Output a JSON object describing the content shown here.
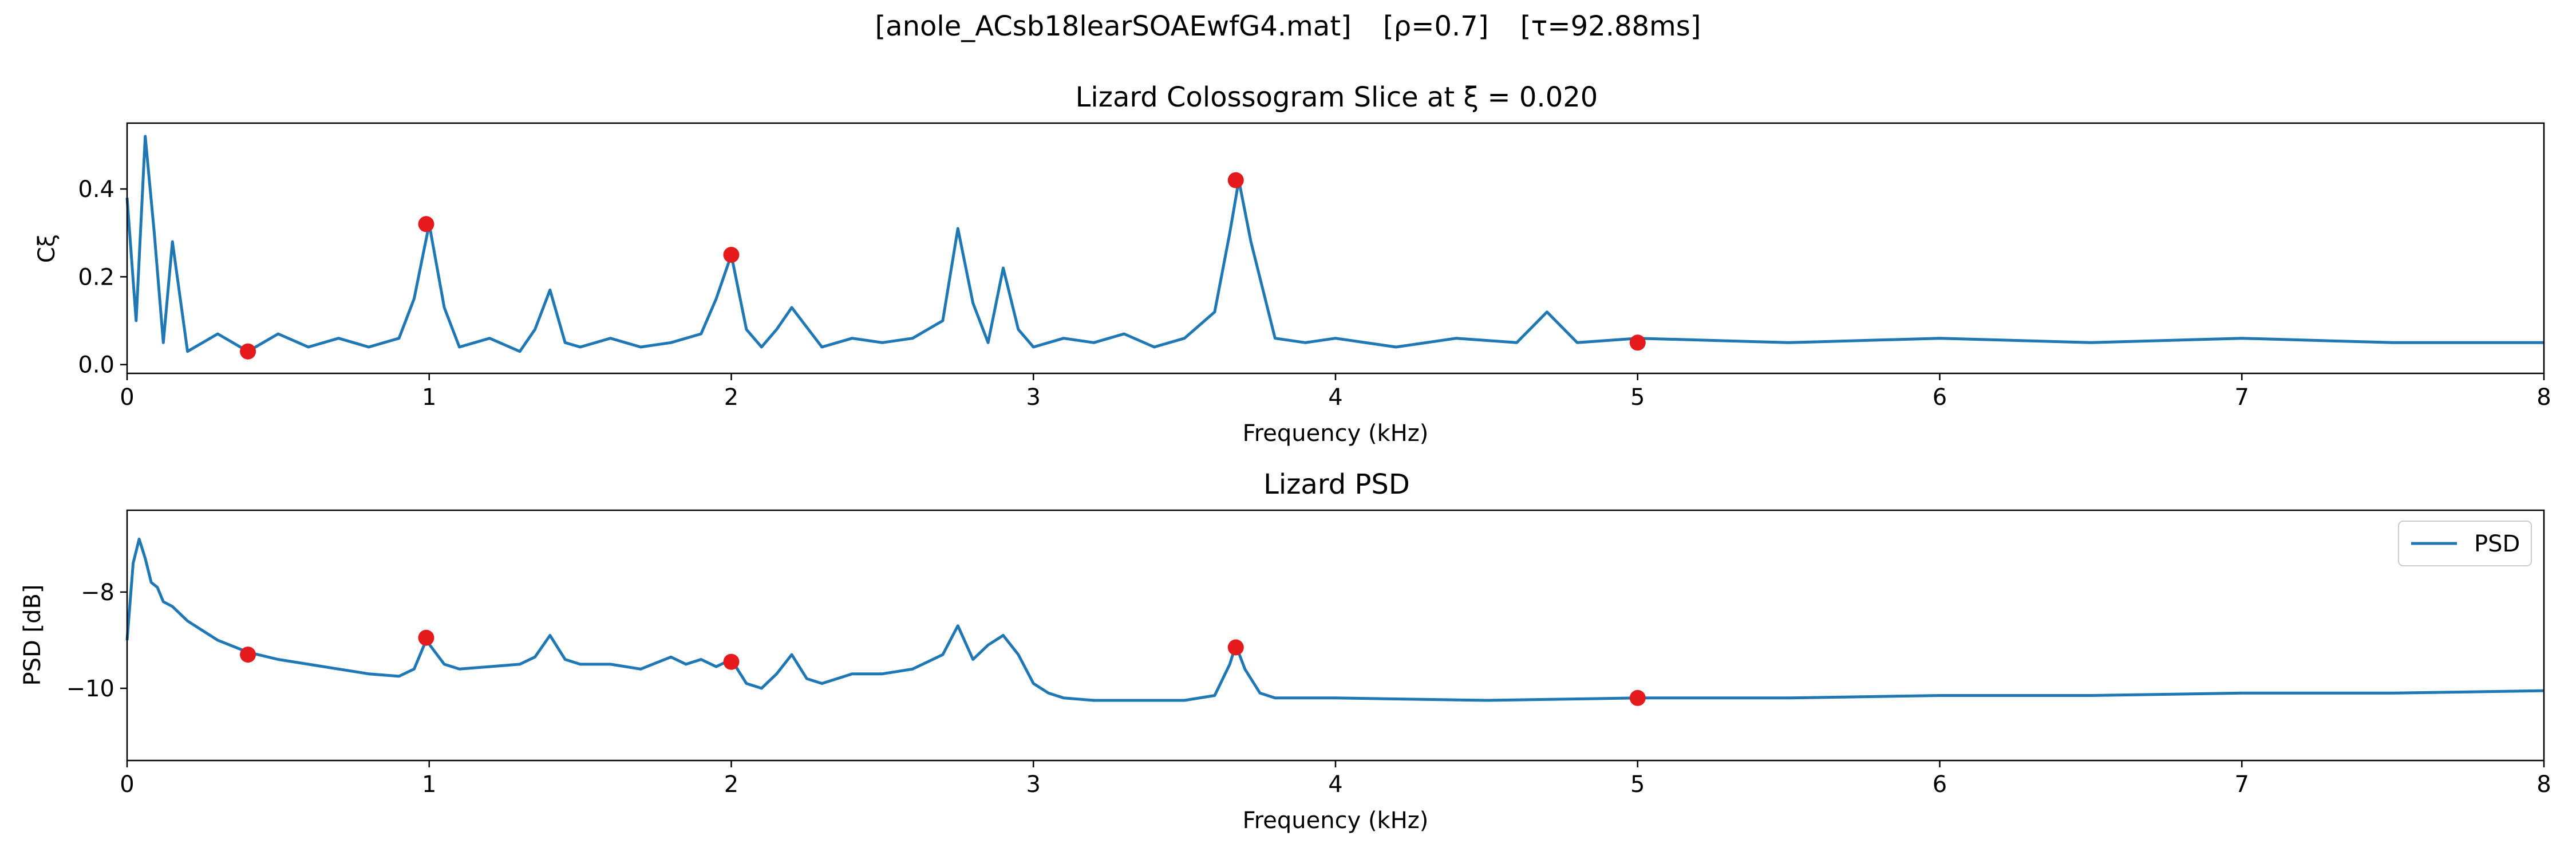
{
  "figure": {
    "suptitle_name": "[anole_ACsb18learSOAEwfG4.mat]",
    "suptitle_rho": "[ρ=0.7]",
    "suptitle_tau": "[τ=92.88ms]"
  },
  "colors": {
    "line": "#1f77b4",
    "marker": "#e41a1c",
    "axes": "#000000",
    "background": "#ffffff"
  },
  "chart_data": [
    {
      "type": "line",
      "title": "Lizard Colossogram Slice at ξ = 0.020",
      "xlabel": "Frequency (kHz)",
      "ylabel": "Cξ",
      "xlim": [
        0,
        8
      ],
      "ylim": [
        -0.02,
        0.55
      ],
      "xticks": [
        0,
        1,
        2,
        3,
        4,
        5,
        6,
        7,
        8
      ],
      "yticks": [
        0.0,
        0.2,
        0.4
      ],
      "ytick_labels": [
        "0.0",
        "0.2",
        "0.4"
      ],
      "grid": false,
      "legend": null,
      "series": [
        {
          "x": [
            0.0,
            0.03,
            0.06,
            0.09,
            0.12,
            0.15,
            0.2,
            0.3,
            0.4,
            0.5,
            0.6,
            0.7,
            0.8,
            0.9,
            0.95,
            1.0,
            1.05,
            1.1,
            1.2,
            1.3,
            1.35,
            1.4,
            1.45,
            1.5,
            1.6,
            1.7,
            1.8,
            1.9,
            1.95,
            2.0,
            2.05,
            2.1,
            2.15,
            2.2,
            2.3,
            2.4,
            2.5,
            2.6,
            2.7,
            2.75,
            2.8,
            2.85,
            2.9,
            2.95,
            3.0,
            3.1,
            3.2,
            3.3,
            3.4,
            3.5,
            3.6,
            3.65,
            3.68,
            3.72,
            3.8,
            3.9,
            4.0,
            4.2,
            4.4,
            4.6,
            4.7,
            4.8,
            5.0,
            5.5,
            6.0,
            6.5,
            7.0,
            7.5,
            8.0
          ],
          "y": [
            0.38,
            0.1,
            0.52,
            0.3,
            0.05,
            0.28,
            0.03,
            0.07,
            0.03,
            0.07,
            0.04,
            0.06,
            0.04,
            0.06,
            0.15,
            0.32,
            0.13,
            0.04,
            0.06,
            0.03,
            0.08,
            0.17,
            0.05,
            0.04,
            0.06,
            0.04,
            0.05,
            0.07,
            0.15,
            0.25,
            0.08,
            0.04,
            0.08,
            0.13,
            0.04,
            0.06,
            0.05,
            0.06,
            0.1,
            0.31,
            0.14,
            0.05,
            0.22,
            0.08,
            0.04,
            0.06,
            0.05,
            0.07,
            0.04,
            0.06,
            0.12,
            0.3,
            0.42,
            0.28,
            0.06,
            0.05,
            0.06,
            0.04,
            0.06,
            0.05,
            0.12,
            0.05,
            0.06,
            0.05,
            0.06,
            0.05,
            0.06,
            0.05,
            0.05
          ]
        }
      ],
      "markers": {
        "x": [
          0.4,
          0.99,
          2.0,
          3.67,
          5.0
        ],
        "y": [
          0.03,
          0.32,
          0.25,
          0.42,
          0.05
        ]
      }
    },
    {
      "type": "line",
      "title": "Lizard PSD",
      "xlabel": "Frequency (kHz)",
      "ylabel": "PSD [dB]",
      "xlim": [
        0,
        8
      ],
      "ylim": [
        -11.5,
        -6.3
      ],
      "xticks": [
        0,
        1,
        2,
        3,
        4,
        5,
        6,
        7,
        8
      ],
      "yticks": [
        -10,
        -8
      ],
      "ytick_labels": [
        "−10",
        "−8"
      ],
      "grid": false,
      "legend": {
        "position": "upper right",
        "entries": [
          "PSD"
        ]
      },
      "series": [
        {
          "name": "PSD",
          "x": [
            0.0,
            0.02,
            0.04,
            0.06,
            0.08,
            0.1,
            0.12,
            0.15,
            0.2,
            0.25,
            0.3,
            0.4,
            0.5,
            0.6,
            0.7,
            0.8,
            0.9,
            0.95,
            0.99,
            1.05,
            1.1,
            1.2,
            1.3,
            1.35,
            1.4,
            1.45,
            1.5,
            1.6,
            1.7,
            1.8,
            1.85,
            1.9,
            1.95,
            2.0,
            2.05,
            2.1,
            2.15,
            2.2,
            2.25,
            2.3,
            2.4,
            2.5,
            2.6,
            2.65,
            2.7,
            2.75,
            2.8,
            2.85,
            2.9,
            2.95,
            3.0,
            3.05,
            3.1,
            3.2,
            3.3,
            3.5,
            3.6,
            3.65,
            3.67,
            3.7,
            3.75,
            3.8,
            4.0,
            4.5,
            5.0,
            5.5,
            6.0,
            6.5,
            7.0,
            7.5,
            8.0
          ],
          "y": [
            -9.0,
            -7.4,
            -6.9,
            -7.3,
            -7.8,
            -7.9,
            -8.2,
            -8.3,
            -8.6,
            -8.8,
            -9.0,
            -9.25,
            -9.4,
            -9.5,
            -9.6,
            -9.7,
            -9.75,
            -9.6,
            -9.0,
            -9.5,
            -9.6,
            -9.55,
            -9.5,
            -9.35,
            -8.9,
            -9.4,
            -9.5,
            -9.5,
            -9.6,
            -9.35,
            -9.5,
            -9.4,
            -9.55,
            -9.4,
            -9.9,
            -10.0,
            -9.7,
            -9.3,
            -9.8,
            -9.9,
            -9.7,
            -9.7,
            -9.6,
            -9.45,
            -9.3,
            -8.7,
            -9.4,
            -9.1,
            -8.9,
            -9.3,
            -9.9,
            -10.1,
            -10.2,
            -10.25,
            -10.25,
            -10.25,
            -10.15,
            -9.5,
            -9.1,
            -9.6,
            -10.1,
            -10.2,
            -10.2,
            -10.25,
            -10.2,
            -10.2,
            -10.15,
            -10.15,
            -10.1,
            -10.1,
            -10.05
          ]
        }
      ],
      "markers": {
        "x": [
          0.4,
          0.99,
          2.0,
          3.67,
          5.0
        ],
        "y": [
          -9.3,
          -8.95,
          -9.45,
          -9.15,
          -10.2
        ]
      }
    }
  ]
}
